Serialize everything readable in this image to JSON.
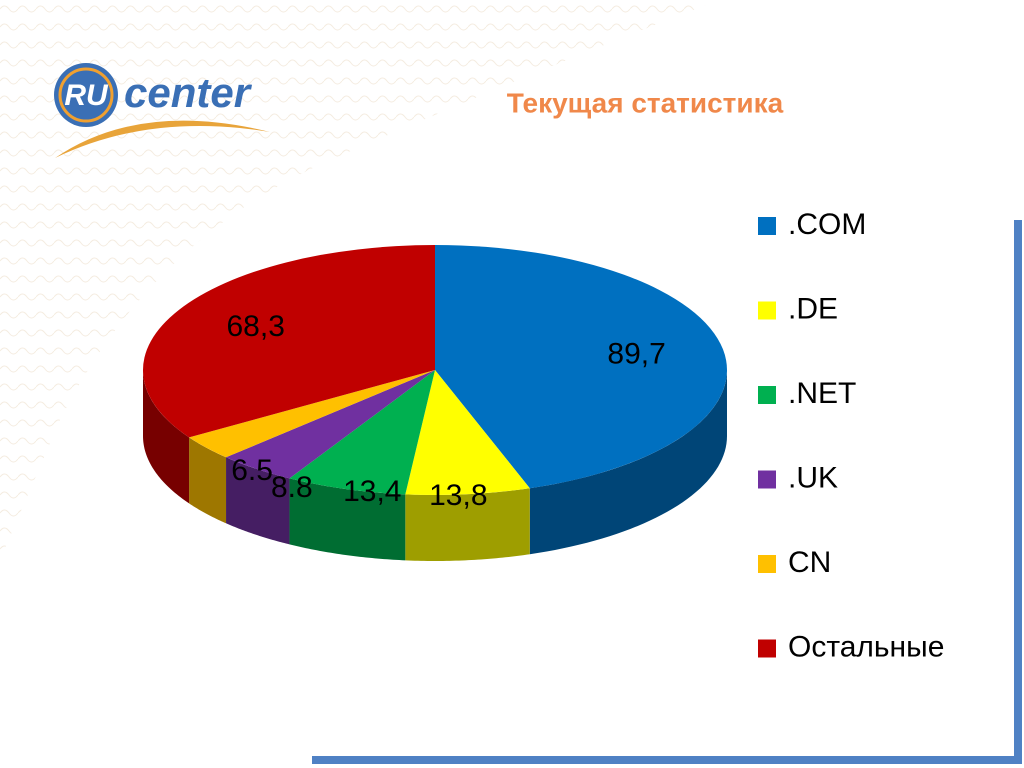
{
  "logo": {
    "mark": "RU",
    "text": "center"
  },
  "chart_data": {
    "type": "pie",
    "title": "Текущая статистика",
    "categories": [
      ".COM",
      ".DE",
      ".NET",
      ".UK",
      "CN",
      "Остальные"
    ],
    "values": [
      89.7,
      13.8,
      13.4,
      8.8,
      6.5,
      68.3
    ],
    "value_labels": [
      "89,7",
      "13,8",
      "13,4",
      "8.8",
      "6.5",
      "68,3"
    ],
    "colors": [
      "#0070c0",
      "#ffff00",
      "#00b050",
      "#7030a0",
      "#ffc000",
      "#c00000"
    ],
    "legend": "right"
  }
}
